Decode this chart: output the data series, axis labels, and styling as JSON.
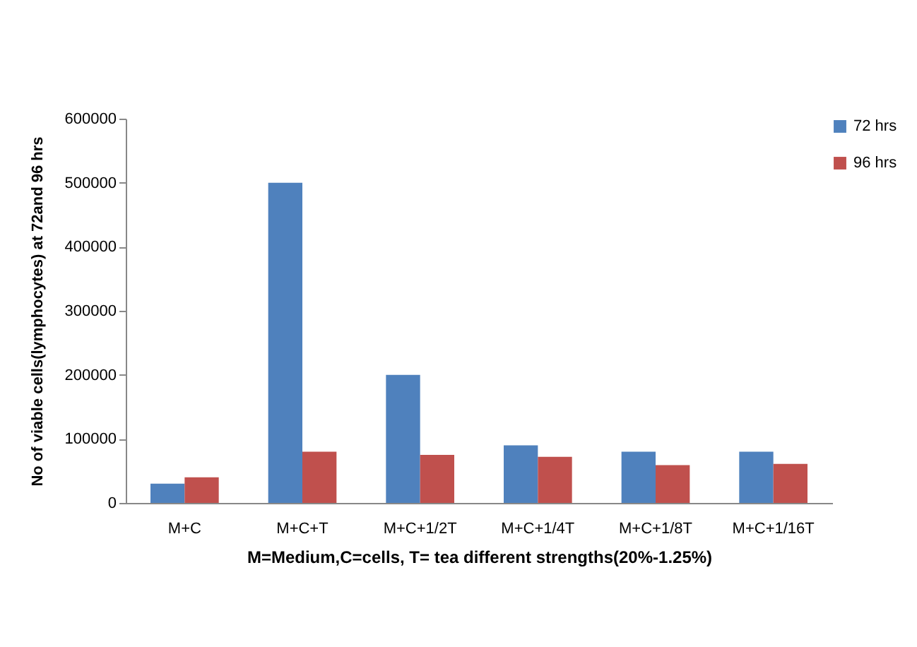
{
  "chart_data": {
    "type": "bar",
    "xlabel": "M=Medium,C=cells, T= tea  different strengths(20%-1.25%)",
    "ylabel": "No of viable cells(lymphocytes)  at 72and 96 hrs",
    "categories": [
      "M+C",
      "M+C+T",
      "M+C+1/2T",
      "M+C+1/4T",
      "M+C+1/8T",
      "M+C+1/16T"
    ],
    "series": [
      {
        "name": "72 hrs",
        "color": "#4f81bd",
        "values": [
          30000,
          500000,
          200000,
          90000,
          80000,
          80000
        ]
      },
      {
        "name": "96 hrs",
        "color": "#c0504d",
        "values": [
          40000,
          80000,
          75000,
          72000,
          59000,
          61000
        ]
      }
    ],
    "ylim": [
      0,
      600000
    ],
    "yticks": [
      0,
      100000,
      200000,
      300000,
      400000,
      500000,
      600000
    ],
    "grid": false,
    "legend": "right"
  }
}
